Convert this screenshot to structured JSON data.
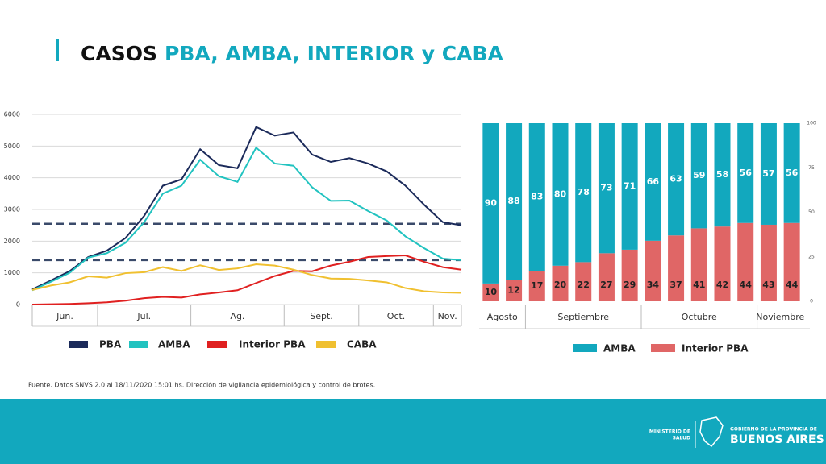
{
  "header": {
    "title": "CASOS",
    "subtitle": "PBA, AMBA, INTERIOR y CABA"
  },
  "chart_data": [
    {
      "type": "line",
      "categories": [
        "Jun.",
        "Jun.",
        "Jun.",
        "Jun.",
        "Jul.",
        "Jul.",
        "Jul.",
        "Jul.",
        "Jul.",
        "Ag.",
        "Ag.",
        "Ag.",
        "Ag.",
        "Ag.",
        "Sept.",
        "Sept.",
        "Sept.",
        "Sept.",
        "Oct.",
        "Oct.",
        "Oct.",
        "Oct.",
        "Nov.",
        "Nov."
      ],
      "series": [
        {
          "name": "PBA",
          "color": "#1b2a5a",
          "values": [
            480,
            760,
            1050,
            1500,
            1700,
            2100,
            2800,
            3750,
            3950,
            4900,
            4400,
            4300,
            5600,
            5330,
            5430,
            4730,
            4500,
            4620,
            4450,
            4200,
            3750,
            3150,
            2600,
            2500
          ]
        },
        {
          "name": "AMBA",
          "color": "#22c3c0",
          "values": [
            450,
            720,
            1000,
            1480,
            1620,
            1950,
            2600,
            3500,
            3750,
            4570,
            4050,
            3870,
            4950,
            4450,
            4380,
            3700,
            3270,
            3280,
            2950,
            2650,
            2150,
            1780,
            1450,
            1400
          ]
        },
        {
          "name": "Interior PBA",
          "color": "#e02020",
          "values": [
            0,
            10,
            20,
            40,
            70,
            120,
            200,
            240,
            220,
            320,
            380,
            450,
            680,
            900,
            1060,
            1050,
            1230,
            1350,
            1500,
            1530,
            1550,
            1350,
            1180,
            1100
          ]
        },
        {
          "name": "CABA",
          "color": "#f0c030",
          "values": [
            460,
            600,
            700,
            890,
            850,
            990,
            1020,
            1180,
            1060,
            1240,
            1090,
            1140,
            1270,
            1230,
            1100,
            930,
            820,
            810,
            760,
            700,
            520,
            420,
            380,
            370
          ]
        }
      ],
      "reference_lines": {
        "values": [
          2550,
          1400
        ],
        "color": "#3a4a6a",
        "style": "dashed"
      },
      "ylim": [
        0,
        6000
      ],
      "yticks": [
        0,
        1000,
        2000,
        3000,
        4000,
        5000,
        6000
      ],
      "grid": true
    },
    {
      "type": "stacked_bar",
      "categories": [
        "Agosto",
        "Agosto",
        "Septiembre",
        "Septiembre",
        "Septiembre",
        "Septiembre",
        "Septiembre",
        "Octubre",
        "Octubre",
        "Octubre",
        "Octubre",
        "Octubre",
        "Noviembre",
        "Noviembre"
      ],
      "series": [
        {
          "name": "AMBA",
          "color": "#12a8be",
          "values": [
            90,
            88,
            83,
            80,
            78,
            73,
            71,
            66,
            63,
            59,
            58,
            56,
            57,
            56
          ]
        },
        {
          "name": "Interior PBA",
          "color": "#e06666",
          "values": [
            10,
            12,
            17,
            20,
            22,
            27,
            29,
            34,
            37,
            41,
            42,
            44,
            43,
            44
          ]
        }
      ],
      "ylim": [
        0,
        100
      ],
      "yticks": [
        0,
        25,
        50,
        75,
        100
      ],
      "ytick_side": "right"
    }
  ],
  "footer": {
    "source": "Fuente. Datos SNVS 2.0 al 18/11/2020 15:01 hs. Dirección de vigilancia epidemiológica y control de brotes.",
    "ministry": [
      "MINISTERIO DE",
      "SALUD"
    ],
    "government": "GOBIERNO DE LA PROVINCIA DE",
    "province": "BUENOS AIRES"
  }
}
